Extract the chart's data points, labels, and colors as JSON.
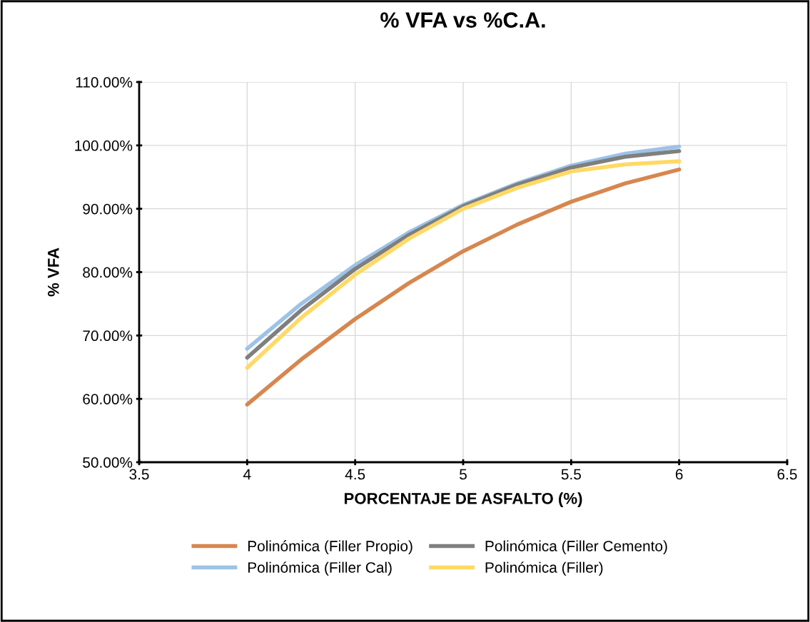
{
  "chart_data": {
    "type": "line",
    "title": "% VFA vs %C.A.",
    "xlabel": "PORCENTAJE DE ASFALTO (%)",
    "ylabel": "% VFA",
    "x": [
      4,
      4.25,
      4.5,
      4.75,
      5,
      5.25,
      5.5,
      5.75,
      6
    ],
    "series": [
      {
        "name": "Polinómica (Filler Propio)",
        "color": "#d6874f",
        "values": [
          59.1,
          66.2,
          72.6,
          78.3,
          83.3,
          87.5,
          91.1,
          94.0,
          96.2
        ]
      },
      {
        "name": "Polinómica (Filler Cal)",
        "color": "#9dc3e6",
        "values": [
          67.9,
          75.0,
          81.1,
          86.3,
          90.6,
          94.0,
          96.8,
          98.7,
          99.8
        ]
      },
      {
        "name": "Polinómica (Filler Cemento)",
        "color": "#7f7f7f",
        "values": [
          66.5,
          74.0,
          80.5,
          85.9,
          90.4,
          93.8,
          96.5,
          98.2,
          99.1
        ]
      },
      {
        "name": "Polinómica (Filler)",
        "color": "#ffd966",
        "values": [
          64.9,
          72.8,
          79.6,
          85.3,
          90.0,
          93.3,
          95.9,
          97.0,
          97.5
        ]
      }
    ],
    "xlim": [
      3.5,
      6.5
    ],
    "xticks": [
      3.5,
      4,
      4.5,
      5,
      5.5,
      6,
      6.5
    ],
    "ylim": [
      50,
      110
    ],
    "yticks": [
      {
        "value": 50,
        "label": "50.00%"
      },
      {
        "value": 60,
        "label": "60.00%"
      },
      {
        "value": 70,
        "label": "70.00%"
      },
      {
        "value": 80,
        "label": "80.00%"
      },
      {
        "value": 90,
        "label": "90.00%"
      },
      {
        "value": 100,
        "label": "100.00%"
      },
      {
        "value": 110,
        "label": "110.00%"
      }
    ],
    "grid": true,
    "legend": "bottom",
    "marker": "none",
    "line_style": "solid"
  }
}
